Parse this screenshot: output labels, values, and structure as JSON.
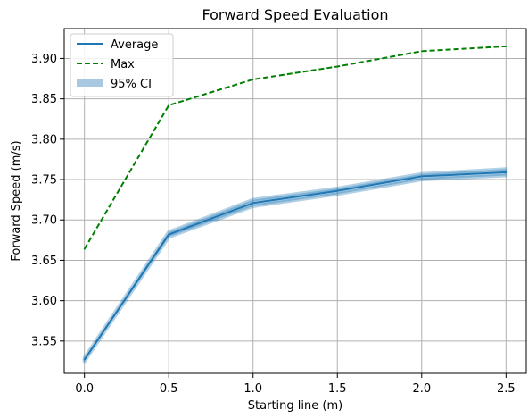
{
  "chart_data": {
    "type": "line",
    "title": "Forward Speed Evaluation",
    "xlabel": "Starting line (m)",
    "ylabel": "Forward Speed (m/s)",
    "x": [
      0.0,
      0.5,
      1.0,
      1.5,
      2.0,
      2.5
    ],
    "xlim": [
      -0.12,
      2.62
    ],
    "ylim": [
      3.51,
      3.937
    ],
    "xticks": [
      0.0,
      0.5,
      1.0,
      1.5,
      2.0,
      2.5
    ],
    "xtick_labels": [
      "0.0",
      "0.5",
      "1.0",
      "1.5",
      "2.0",
      "2.5"
    ],
    "yticks": [
      3.55,
      3.6,
      3.65,
      3.7,
      3.75,
      3.8,
      3.85,
      3.9
    ],
    "ytick_labels": [
      "3.55",
      "3.60",
      "3.65",
      "3.70",
      "3.75",
      "3.80",
      "3.85",
      "3.90"
    ],
    "grid": true,
    "legend_position": "top-left",
    "series": [
      {
        "name": "Average",
        "style": "solid",
        "color": "#1f77b4",
        "values": [
          3.527,
          3.682,
          3.721,
          3.736,
          3.754,
          3.759
        ]
      },
      {
        "name": "Max",
        "style": "dashed",
        "color": "#008000",
        "values": [
          3.664,
          3.842,
          3.874,
          3.89,
          3.909,
          3.915
        ]
      },
      {
        "name": "95% CI",
        "style": "band",
        "color": "#1f77b4",
        "lower": [
          3.525,
          3.679,
          3.717,
          3.732,
          3.75,
          3.755
        ],
        "upper": [
          3.529,
          3.685,
          3.725,
          3.739,
          3.757,
          3.763
        ]
      }
    ]
  }
}
